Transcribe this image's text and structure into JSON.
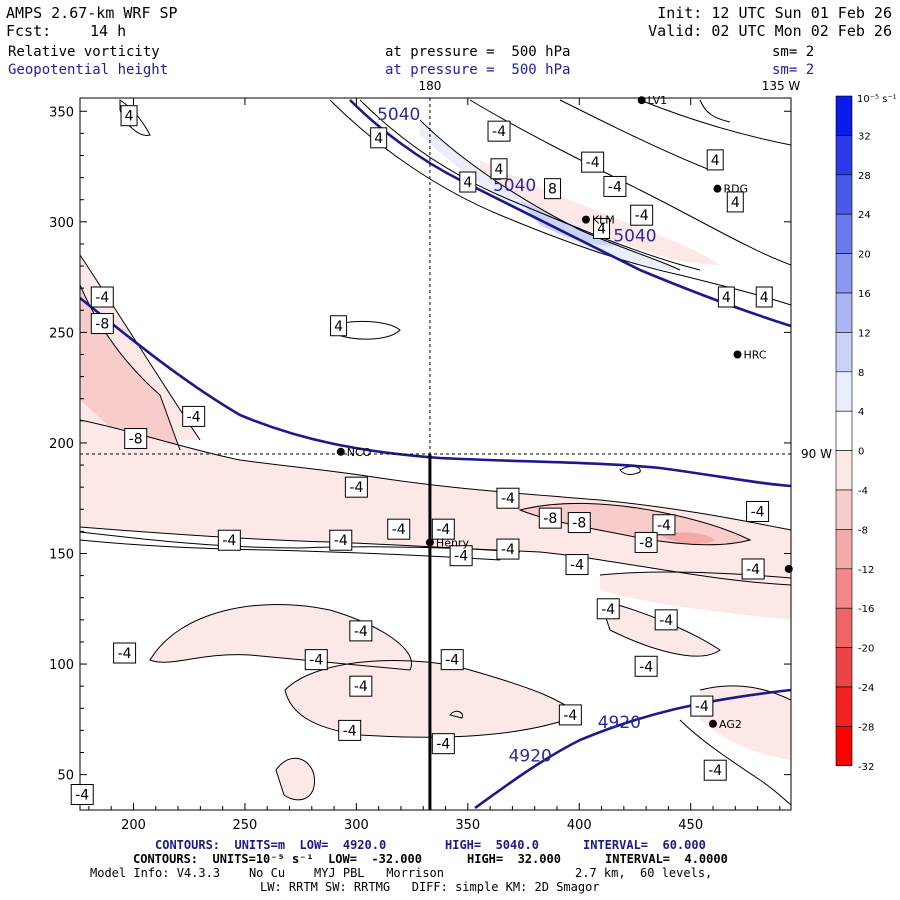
{
  "header": {
    "model": "AMPS 2.67-km WRF SP",
    "fcst_label": "Fcst:",
    "fcst_value": "14 h",
    "init": "Init: 12 UTC Sun 01 Feb 26",
    "valid": "Valid: 02 UTC Mon 02 Feb 26",
    "field1": "Relative vorticity",
    "field1_pressure": "at pressure =  500 hPa",
    "field1_sm": "sm= 2",
    "field2": "Geopotential height",
    "field2_pressure": "at pressure =  500 hPa",
    "field2_sm": "sm= 2",
    "colors": {
      "height_contour": "#1a1a8c",
      "header_blue": "#2020a0"
    }
  },
  "chart_data": {
    "type": "contour",
    "x_axis": {
      "ticks": [
        200,
        250,
        300,
        350,
        400,
        450
      ],
      "range": [
        176,
        495
      ]
    },
    "y_axis": {
      "ticks": [
        50,
        100,
        150,
        200,
        250,
        300,
        350
      ],
      "range": [
        34,
        356
      ]
    },
    "top_labels": [
      "180",
      "135 W"
    ],
    "right_labels": [
      "90 W"
    ],
    "crosshair": {
      "x": 333,
      "y": 195
    },
    "cross_section_line": {
      "x": 333,
      "y_from": 34,
      "y_to": 195
    },
    "height_contour_labels": [
      {
        "text": "5040",
        "x": 319,
        "y": 346
      },
      {
        "text": "5040",
        "x": 371,
        "y": 314
      },
      {
        "text": "5040",
        "x": 425,
        "y": 291
      },
      {
        "text": "4920",
        "x": 418,
        "y": 71
      },
      {
        "text": "4920",
        "x": 378,
        "y": 56
      }
    ],
    "vorticity_labels": [
      {
        "text": "4",
        "x": 198,
        "y": 348
      },
      {
        "text": "4",
        "x": 310,
        "y": 338
      },
      {
        "text": "-4",
        "x": 364,
        "y": 341
      },
      {
        "text": "4",
        "x": 364,
        "y": 324
      },
      {
        "text": "4",
        "x": 350,
        "y": 318
      },
      {
        "text": "8",
        "x": 388,
        "y": 315
      },
      {
        "text": "-4",
        "x": 406,
        "y": 327
      },
      {
        "text": "-4",
        "x": 416,
        "y": 316
      },
      {
        "text": "-4",
        "x": 428,
        "y": 303
      },
      {
        "text": "4",
        "x": 410,
        "y": 297
      },
      {
        "text": "4",
        "x": 470,
        "y": 309
      },
      {
        "text": "4",
        "x": 461,
        "y": 328
      },
      {
        "text": "4",
        "x": 466,
        "y": 266
      },
      {
        "text": "4",
        "x": 483,
        "y": 266
      },
      {
        "text": "4",
        "x": 292,
        "y": 253
      },
      {
        "text": "-4",
        "x": 186,
        "y": 266
      },
      {
        "text": "-8",
        "x": 186,
        "y": 254
      },
      {
        "text": "-4",
        "x": 227,
        "y": 212
      },
      {
        "text": "-8",
        "x": 201,
        "y": 202
      },
      {
        "text": "-4",
        "x": 300,
        "y": 180
      },
      {
        "text": "-4",
        "x": 243,
        "y": 156
      },
      {
        "text": "-4",
        "x": 293,
        "y": 156
      },
      {
        "text": "-4",
        "x": 319,
        "y": 161
      },
      {
        "text": "-4",
        "x": 339,
        "y": 161
      },
      {
        "text": "-4",
        "x": 368,
        "y": 175
      },
      {
        "text": "-8",
        "x": 387,
        "y": 166
      },
      {
        "text": "-8",
        "x": 400,
        "y": 164
      },
      {
        "text": "-4",
        "x": 438,
        "y": 163
      },
      {
        "text": "-4",
        "x": 480,
        "y": 169
      },
      {
        "text": "-4",
        "x": 347,
        "y": 149
      },
      {
        "text": "-4",
        "x": 368,
        "y": 152
      },
      {
        "text": "-8",
        "x": 430,
        "y": 155
      },
      {
        "text": "-4",
        "x": 399,
        "y": 145
      },
      {
        "text": "-4",
        "x": 478,
        "y": 143
      },
      {
        "text": "-4",
        "x": 413,
        "y": 125
      },
      {
        "text": "-4",
        "x": 439,
        "y": 120
      },
      {
        "text": "-4",
        "x": 196,
        "y": 105
      },
      {
        "text": "-4",
        "x": 302,
        "y": 115
      },
      {
        "text": "-4",
        "x": 282,
        "y": 102
      },
      {
        "text": "-4",
        "x": 343,
        "y": 102
      },
      {
        "text": "-4",
        "x": 302,
        "y": 90
      },
      {
        "text": "-4",
        "x": 430,
        "y": 99
      },
      {
        "text": "-4",
        "x": 455,
        "y": 81
      },
      {
        "text": "-4",
        "x": 396,
        "y": 77
      },
      {
        "text": "-4",
        "x": 297,
        "y": 70
      },
      {
        "text": "-4",
        "x": 339,
        "y": 64
      },
      {
        "text": "-4",
        "x": 461,
        "y": 52
      },
      {
        "text": "-4",
        "x": 177,
        "y": 41
      }
    ],
    "stations": [
      {
        "name": "LV1",
        "x": 428,
        "y": 355
      },
      {
        "name": "RDG",
        "x": 462,
        "y": 315
      },
      {
        "name": "KLM",
        "x": 403,
        "y": 301
      },
      {
        "name": "HRC",
        "x": 471,
        "y": 240
      },
      {
        "name": "NCO",
        "x": 293,
        "y": 196
      },
      {
        "name": "Henry",
        "x": 333,
        "y": 155
      },
      {
        "name": "AG2",
        "x": 460,
        "y": 73
      },
      {
        "name": "",
        "x": 494,
        "y": 143
      }
    ],
    "colorbar": {
      "unit_label": "10⁻⁵ s⁻¹",
      "ticks": [
        "32",
        "28",
        "24",
        "20",
        "16",
        "12",
        "8",
        "4",
        "0",
        "-4",
        "-8",
        "-12",
        "-16",
        "-20",
        "-24",
        "-28",
        "-32"
      ],
      "colors": [
        "#0a1ae8",
        "#2a3ae8",
        "#4a5ae8",
        "#6a7aec",
        "#8a98f0",
        "#aab6f4",
        "#cad2f8",
        "#eaeefc",
        "#ffffff",
        "#fde8e8",
        "#f9cccc",
        "#f5aaaa",
        "#f28888",
        "#ee6666",
        "#ea4444",
        "#f02222",
        "#ff0000"
      ]
    }
  },
  "footer": {
    "line1_a": "CONTOURS:  UNITS=m  LOW=  4920.0",
    "line1_b": "HIGH=  5040.0",
    "line1_c": "INTERVAL=  60.000",
    "line2_a": "CONTOURS:  UNITS=10⁻⁵ s⁻¹  LOW=  -32.000",
    "line2_b": "HIGH=  32.000",
    "line2_c": "INTERVAL=  4.0000",
    "line3_a": "Model Info: V4.3.3    No Cu    MYJ PBL   Morrison",
    "line3_b": "2.7 km,  60 levels,",
    "line4": "LW: RRTM SW: RRTMG   DIFF: simple KM: 2D Smagor"
  }
}
